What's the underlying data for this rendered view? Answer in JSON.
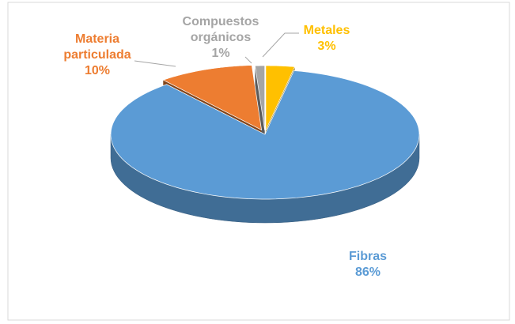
{
  "chart_data": {
    "type": "pie",
    "categories": [
      "Metales",
      "Fibras",
      "Materia particulada",
      "Compuestos orgánicos"
    ],
    "values": [
      3,
      86,
      10,
      1
    ],
    "value_labels": [
      "3%",
      "86%",
      "10%",
      "1%"
    ],
    "colors": [
      "#ffc000",
      "#5b9bd5",
      "#ed7d31",
      "#a5a5a5"
    ]
  }
}
